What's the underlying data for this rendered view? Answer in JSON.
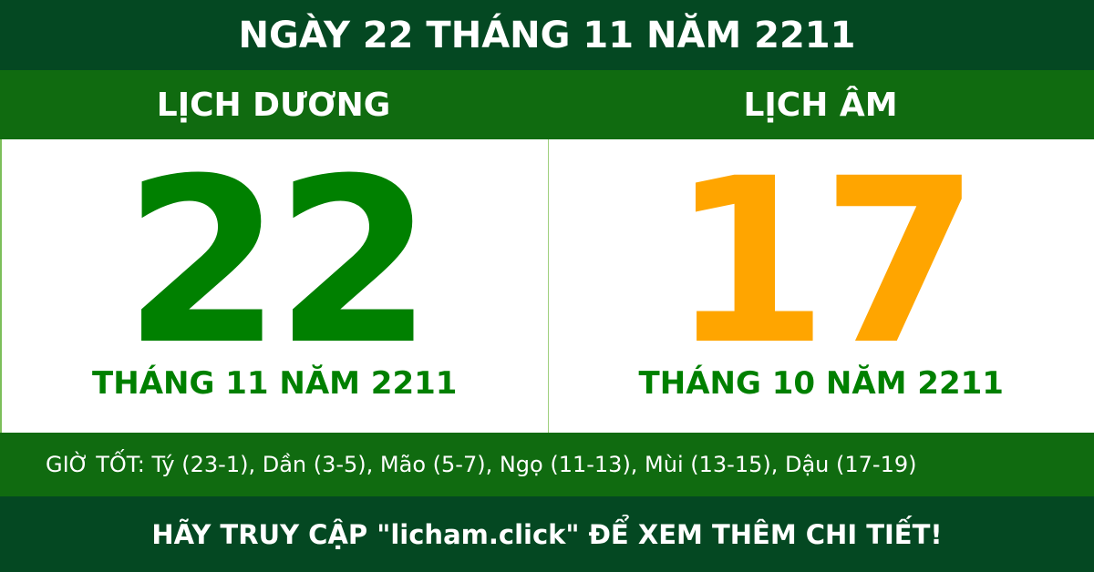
{
  "title": "NGÀY 22 THÁNG 11 NĂM 2211",
  "solar": {
    "label": "LỊCH DƯƠNG",
    "day": "22",
    "month_year": "THÁNG 11 NĂM 2211"
  },
  "lunar": {
    "label": "LỊCH ÂM",
    "day": "17",
    "month_year": "THÁNG 10 NĂM 2211"
  },
  "good_hours": "GIỜ TỐT: Tý (23-1), Dần (3-5), Mão (5-7), Ngọ (11-13), Mùi (13-15), Dậu (17-19)",
  "footer": "HÃY TRUY CẬP \"licham.click\" ĐỂ XEM THÊM CHI TIẾT!",
  "colors": {
    "dark_green": "#044822",
    "mid_green": "#106b10",
    "solar_day": "#008000",
    "lunar_day": "#ffa500"
  }
}
